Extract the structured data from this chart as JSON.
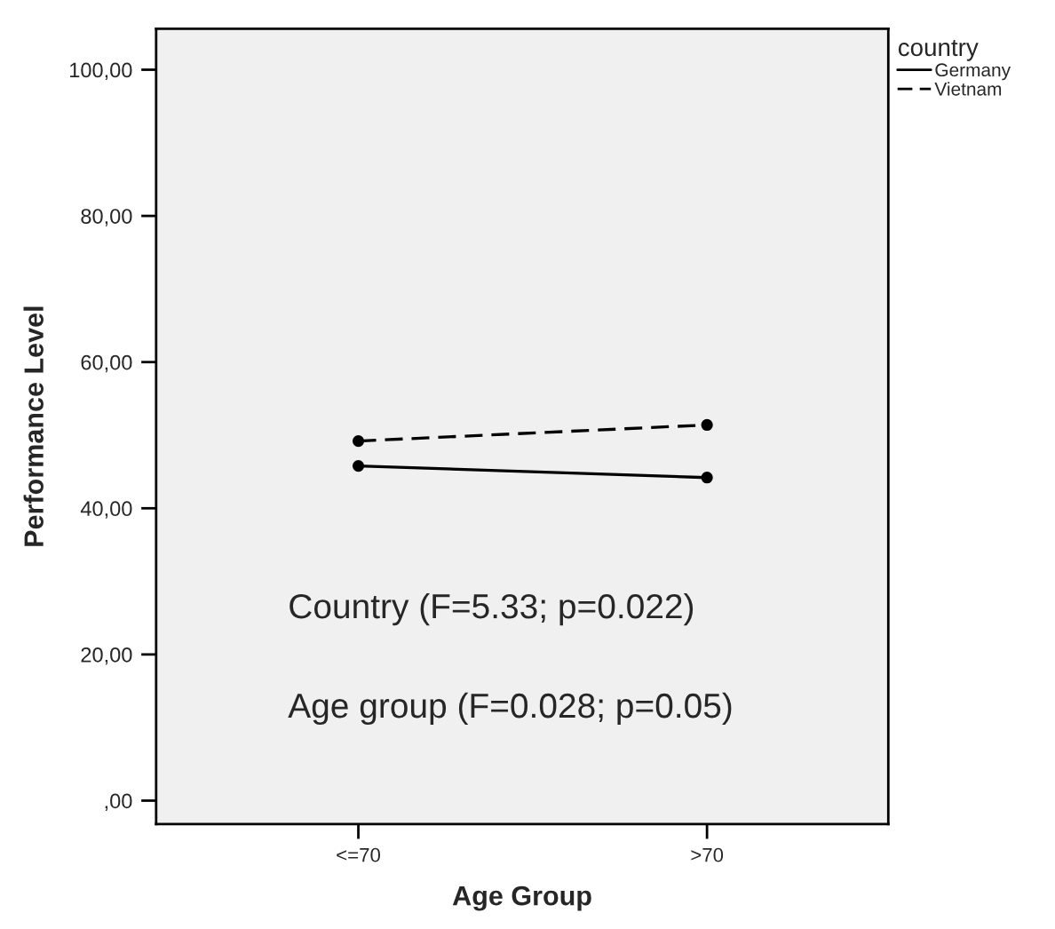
{
  "chart_data": {
    "type": "line",
    "xlabel": "Age Group",
    "ylabel": "Performance Level",
    "legend_title": "country",
    "categories": [
      "<=70",
      ">70"
    ],
    "series": [
      {
        "name": "Germany",
        "color": "#000000",
        "values": [
          45.8,
          44.2
        ],
        "line_style": "solid"
      },
      {
        "name": "Vietnam",
        "color": "#000000",
        "values": [
          49.2,
          51.4
        ],
        "line_style": "dashed"
      }
    ],
    "ylim": [
      -3.2,
      105.6
    ],
    "yticks": [
      {
        "value": 0,
        "label": ",00"
      },
      {
        "value": 20,
        "label": "20,00"
      },
      {
        "value": 40,
        "label": "40,00"
      },
      {
        "value": 60,
        "label": "60,00"
      },
      {
        "value": 80,
        "label": "80,00"
      },
      {
        "value": 100,
        "label": "100,00"
      }
    ],
    "marker": "circle",
    "grid": false,
    "legend": "top right",
    "annotations": [
      "Country (F=5.33; p=0.022)",
      "Age group (F=0.028; p=0.05)"
    ]
  }
}
